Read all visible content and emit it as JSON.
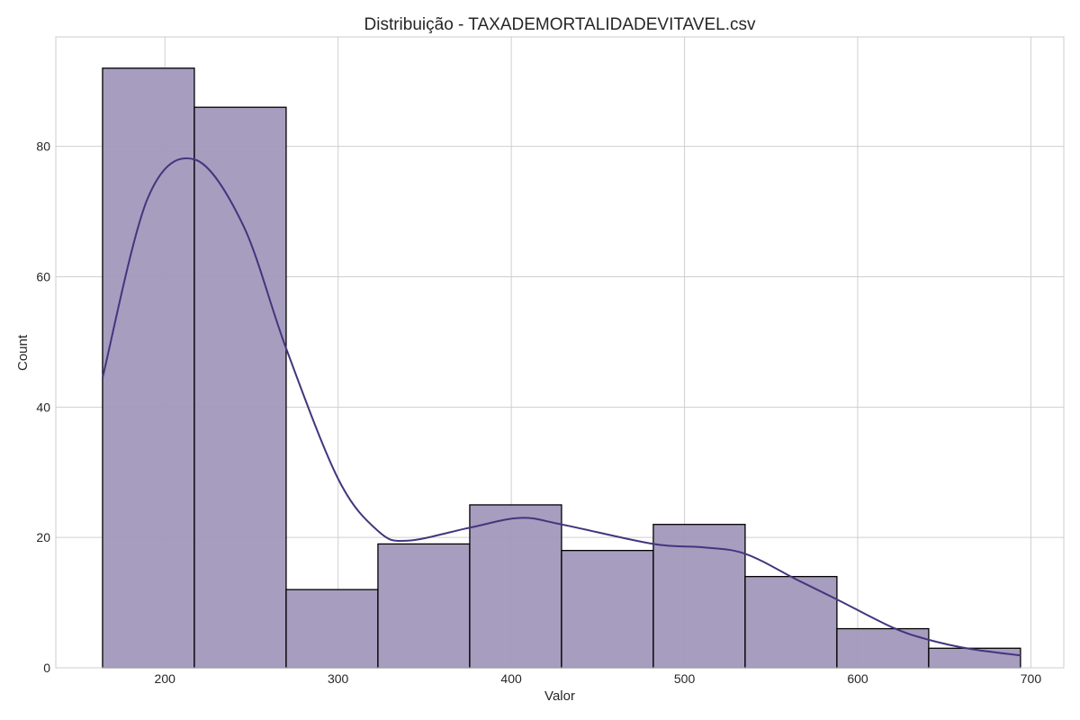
{
  "chart_data": {
    "type": "bar",
    "subtype": "histogram_with_kde",
    "title": "Distribuição - TAXADEMORTALIDADEVITAVEL.csv",
    "xlabel": "Valor",
    "ylabel": "Count",
    "xlim": [
      137,
      719
    ],
    "ylim": [
      0,
      96.8
    ],
    "x_ticks": [
      "200",
      "300",
      "400",
      "500",
      "600",
      "700"
    ],
    "y_ticks": [
      "0",
      "20",
      "40",
      "60",
      "80"
    ],
    "grid": true,
    "legend": "none",
    "bins": [
      {
        "start": 164,
        "end": 217,
        "count": 92
      },
      {
        "start": 217,
        "end": 270,
        "count": 86
      },
      {
        "start": 270,
        "end": 323,
        "count": 12
      },
      {
        "start": 323,
        "end": 376,
        "count": 19
      },
      {
        "start": 376,
        "end": 429,
        "count": 25
      },
      {
        "start": 429,
        "end": 482,
        "count": 18
      },
      {
        "start": 482,
        "end": 535,
        "count": 22
      },
      {
        "start": 535,
        "end": 588,
        "count": 14
      },
      {
        "start": 588,
        "end": 641,
        "count": 6
      },
      {
        "start": 641,
        "end": 694,
        "count": 3
      }
    ],
    "kde": {
      "x": [
        164,
        190,
        217,
        245,
        270,
        300,
        323,
        340,
        376,
        405,
        429,
        482,
        510,
        535,
        565,
        588,
        620,
        641,
        665,
        694
      ],
      "y": [
        44.5,
        72,
        78,
        68,
        49,
        29,
        21,
        19.5,
        21.5,
        23,
        22,
        19,
        18.5,
        17.5,
        13.5,
        10.5,
        6.2,
        4.3,
        2.9,
        1.9
      ]
    },
    "colors": {
      "bar_fill": "#a298bc",
      "bar_edge": "#000000",
      "kde_line": "#45347e",
      "grid": "#cfcfcf",
      "spine": "#cccccc"
    }
  }
}
